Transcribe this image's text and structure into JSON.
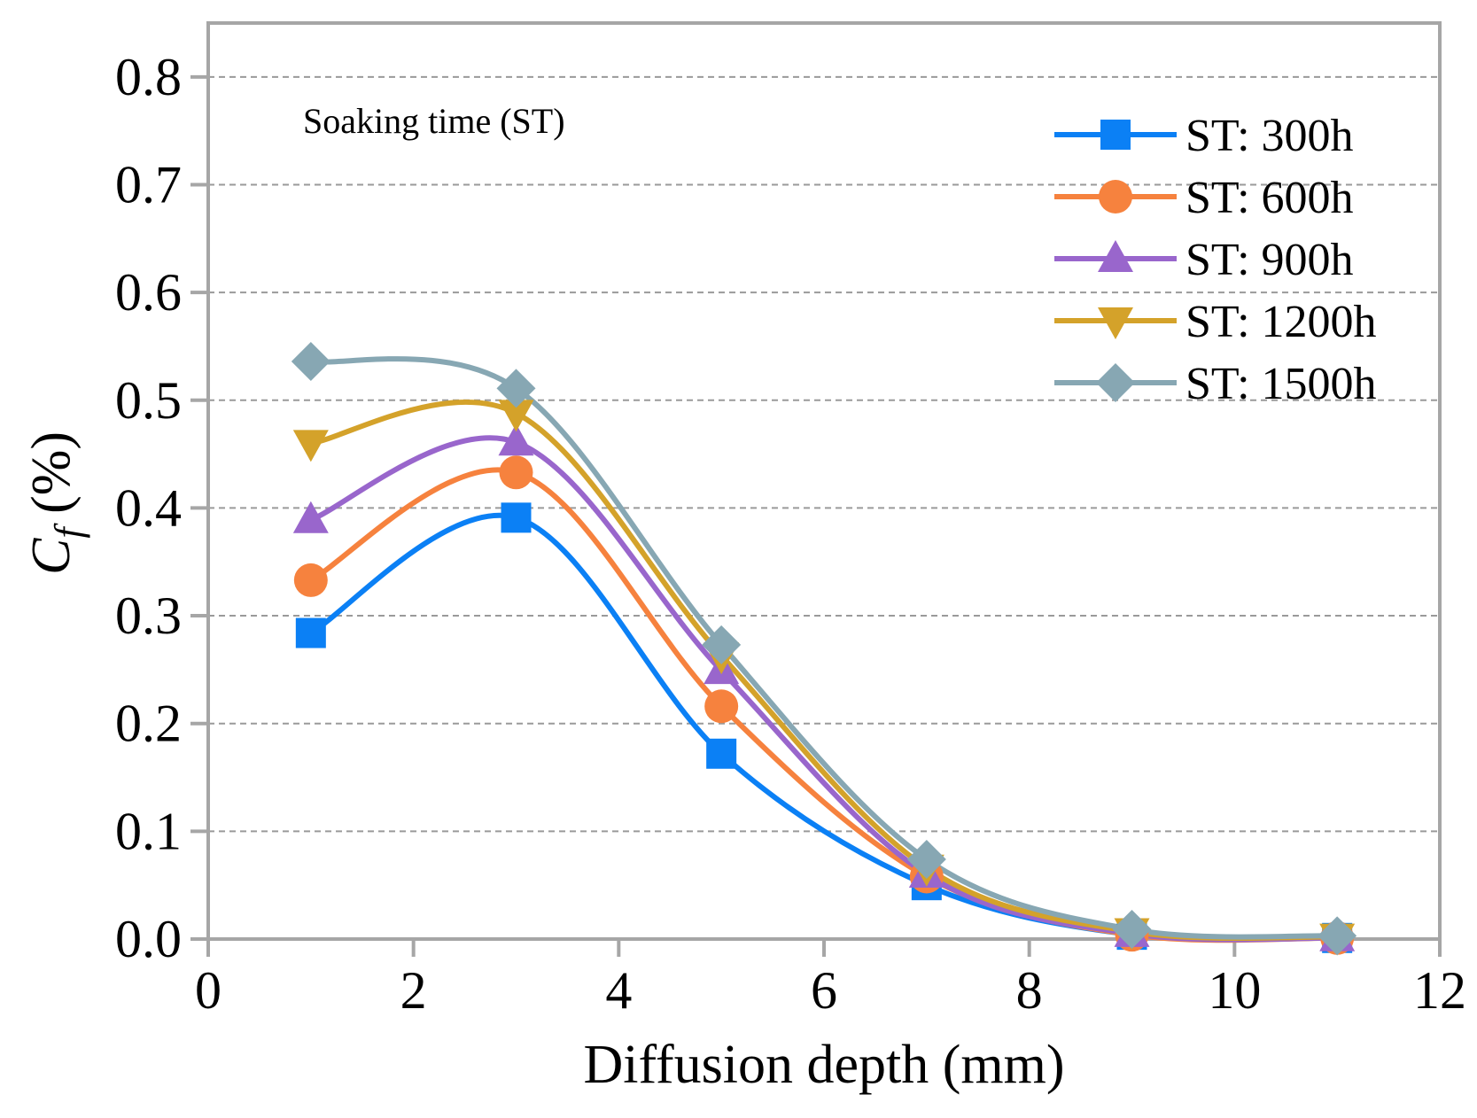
{
  "chart_data": {
    "type": "line",
    "title": "",
    "xlabel": "Diffusion depth (mm)",
    "ylabel_main": "C",
    "ylabel_sub": "f",
    "ylabel_unit": " (%)",
    "xlim": [
      0,
      12
    ],
    "ylim": [
      0.0,
      0.85
    ],
    "x_ticks": [
      "0",
      "2",
      "4",
      "6",
      "8",
      "10",
      "12"
    ],
    "y_ticks": [
      "0.0",
      "0.1",
      "0.2",
      "0.3",
      "0.4",
      "0.5",
      "0.6",
      "0.7",
      "0.8"
    ],
    "grid": "horizontal-dashed",
    "legend_position": "top-right",
    "annotation": "Soaking time (ST)",
    "x": [
      1,
      3,
      5,
      7,
      9,
      11
    ],
    "series": [
      {
        "name": "ST: 300h",
        "marker": "square",
        "color": "#0b80f5",
        "values": [
          0.284,
          0.391,
          0.172,
          0.05,
          0.004,
          0.001
        ]
      },
      {
        "name": "ST: 600h",
        "marker": "circle",
        "color": "#f6823e",
        "values": [
          0.333,
          0.433,
          0.216,
          0.058,
          0.004,
          0.001
        ]
      },
      {
        "name": "ST: 900h",
        "marker": "triangle-up",
        "color": "#9966cc",
        "values": [
          0.389,
          0.461,
          0.249,
          0.06,
          0.005,
          0.001
        ]
      },
      {
        "name": "ST: 1200h",
        "marker": "triangle-down",
        "color": "#d4a22a",
        "values": [
          0.46,
          0.488,
          0.263,
          0.066,
          0.007,
          0.002
        ]
      },
      {
        "name": "ST: 1500h",
        "marker": "diamond",
        "color": "#87a7b3",
        "values": [
          0.536,
          0.511,
          0.273,
          0.074,
          0.009,
          0.003
        ]
      }
    ]
  }
}
